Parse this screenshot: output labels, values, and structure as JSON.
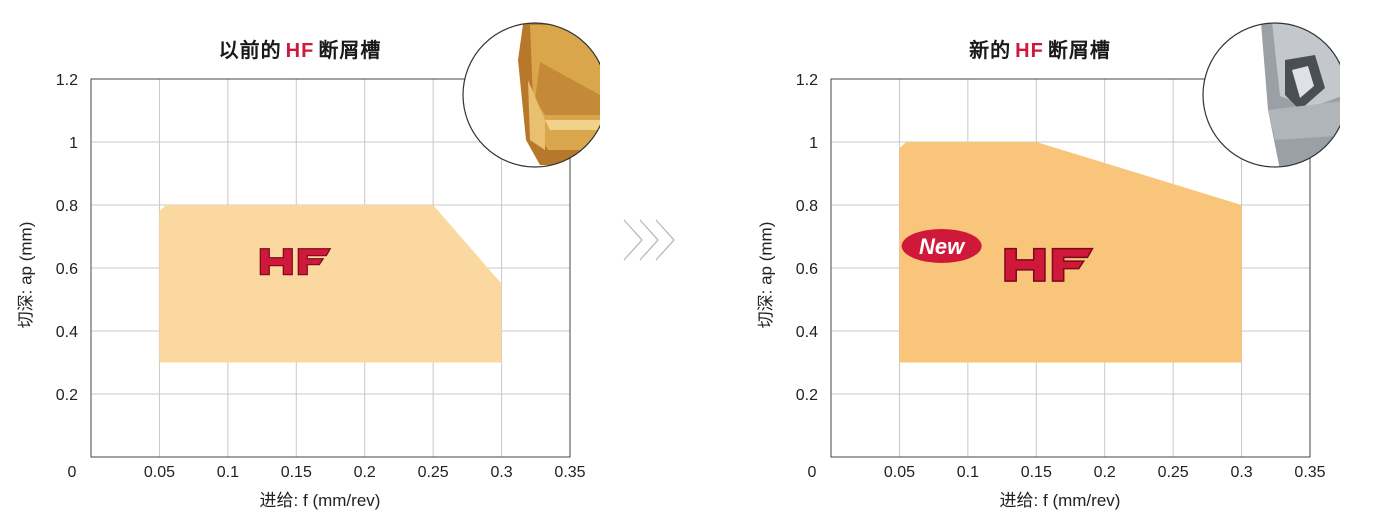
{
  "chart_data": [
    {
      "type": "area",
      "title_prefix": "以前的",
      "title_highlight": "HF",
      "title_suffix": "断屑槽",
      "xlabel": "进给: f (mm/rev)",
      "ylabel": "切深: ap (mm)",
      "xlim": [
        0,
        0.35
      ],
      "ylim": [
        0,
        1.2
      ],
      "x_ticks": [
        "0.05",
        "0.1",
        "0.15",
        "0.2",
        "0.25",
        "0.3",
        "0.35"
      ],
      "x_tick_values": [
        0.05,
        0.1,
        0.15,
        0.2,
        0.25,
        0.3,
        0.35
      ],
      "y_ticks": [
        "0.2",
        "0.4",
        "0.6",
        "0.8",
        "1",
        "1.2"
      ],
      "y_tick_values": [
        0.2,
        0.4,
        0.6,
        0.8,
        1.0,
        1.2
      ],
      "origin_label": "0",
      "grid": true,
      "region": {
        "points": [
          [
            0.05,
            0.3
          ],
          [
            0.05,
            0.78
          ],
          [
            0.055,
            0.8
          ],
          [
            0.25,
            0.8
          ],
          [
            0.3,
            0.55
          ],
          [
            0.3,
            0.3
          ]
        ],
        "color": "#fbd8a0",
        "label": "HF",
        "label_at": [
          0.15,
          0.62
        ]
      },
      "badge": null,
      "insert_color": "gold"
    },
    {
      "type": "area",
      "title_prefix": "新的",
      "title_highlight": "HF",
      "title_suffix": "断屑槽",
      "xlabel": "进给: f (mm/rev)",
      "ylabel": "切深: ap (mm)",
      "xlim": [
        0,
        0.35
      ],
      "ylim": [
        0,
        1.2
      ],
      "x_ticks": [
        "0.05",
        "0.1",
        "0.15",
        "0.2",
        "0.25",
        "0.3",
        "0.35"
      ],
      "x_tick_values": [
        0.05,
        0.1,
        0.15,
        0.2,
        0.25,
        0.3,
        0.35
      ],
      "y_ticks": [
        "0.2",
        "0.4",
        "0.6",
        "0.8",
        "1",
        "1.2"
      ],
      "y_tick_values": [
        0.2,
        0.4,
        0.6,
        0.8,
        1.0,
        1.2
      ],
      "origin_label": "0",
      "grid": true,
      "region": {
        "points": [
          [
            0.05,
            0.3
          ],
          [
            0.05,
            0.98
          ],
          [
            0.055,
            1.0
          ],
          [
            0.15,
            1.0
          ],
          [
            0.3,
            0.8
          ],
          [
            0.3,
            0.3
          ]
        ],
        "color": "#f9c57a",
        "label": "HF",
        "label_at": [
          0.16,
          0.61
        ]
      },
      "badge": {
        "text": "New",
        "at": [
          0.075,
          0.67
        ]
      },
      "insert_color": "silver"
    }
  ],
  "colors": {
    "accent_red": "#d0183a",
    "grid": "#c8c8c8",
    "axis": "#444444"
  },
  "transition_icon": "triple-chevron-right-icon"
}
